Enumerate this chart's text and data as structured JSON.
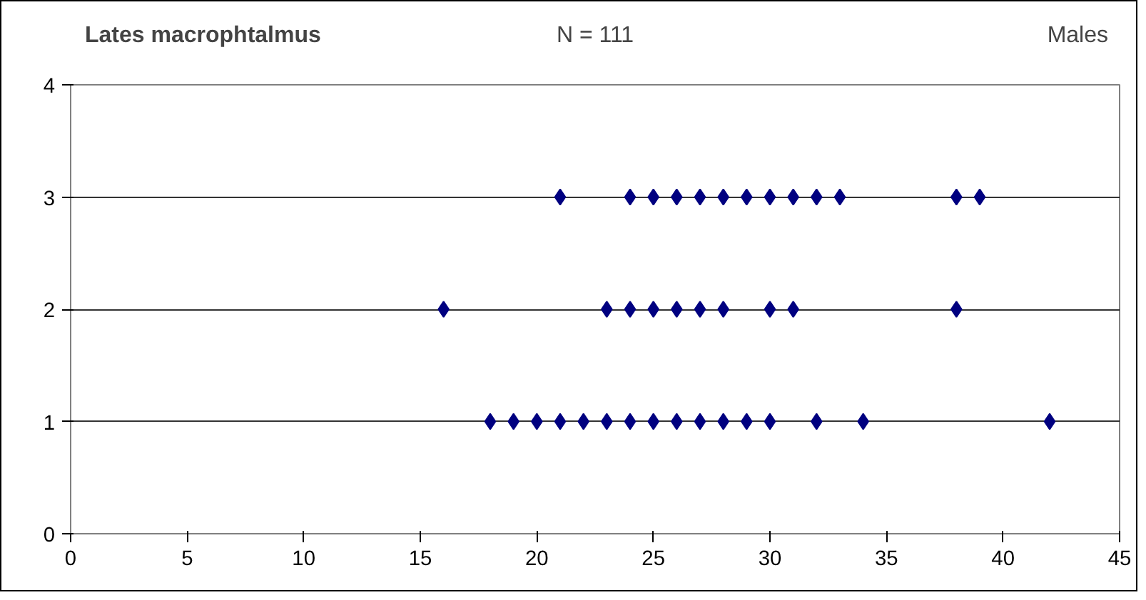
{
  "chart_data": {
    "type": "scatter",
    "title": "Lates macrophtalmus",
    "subtitle": "N = 111",
    "annotations": [
      "Males"
    ],
    "series": [
      {
        "color": "#000080",
        "x": [
          21,
          24,
          25,
          26,
          27,
          28,
          29,
          30,
          31,
          32,
          33,
          38,
          39
        ],
        "values": [
          3,
          3,
          3,
          3,
          3,
          3,
          3,
          3,
          3,
          3,
          3,
          3,
          3
        ]
      },
      {
        "color": "#000080",
        "x": [
          16,
          23,
          24,
          25,
          26,
          27,
          28,
          30,
          31,
          38
        ],
        "values": [
          2,
          2,
          2,
          2,
          2,
          2,
          2,
          2,
          2,
          2
        ]
      },
      {
        "color": "#000080",
        "x": [
          18,
          19,
          20,
          21,
          22,
          23,
          24,
          25,
          26,
          27,
          28,
          29,
          30,
          32,
          34,
          42
        ],
        "values": [
          1,
          1,
          1,
          1,
          1,
          1,
          1,
          1,
          1,
          1,
          1,
          1,
          1,
          1,
          1,
          1
        ]
      }
    ],
    "xlim": [
      0,
      45
    ],
    "xticks": [
      0,
      5,
      10,
      15,
      20,
      25,
      30,
      35,
      40,
      45
    ],
    "ylim": [
      0,
      4
    ],
    "yticks": [
      0,
      1,
      2,
      3,
      4
    ],
    "grid": "y",
    "marker": "diamond"
  }
}
